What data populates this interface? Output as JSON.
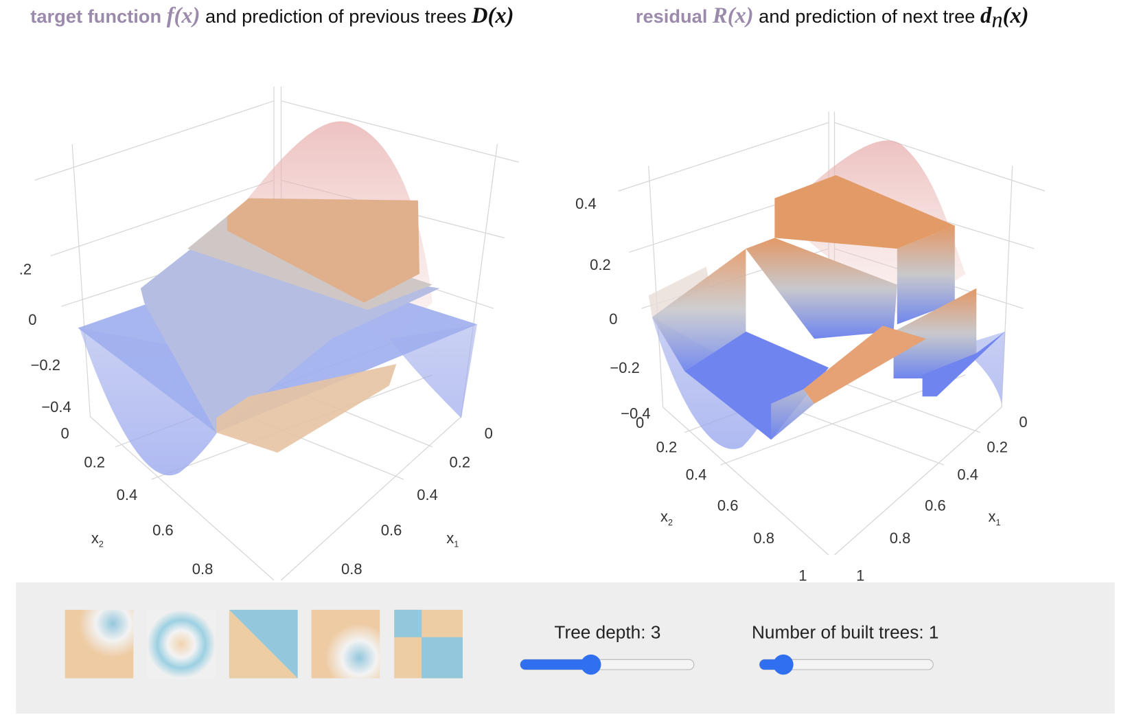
{
  "left_panel": {
    "title": {
      "highlight": "target function",
      "math1": "f(x)",
      "text": " and prediction of previous trees ",
      "math2": "D(x)"
    },
    "z_ticks": [
      ".2",
      "0",
      "−0.2",
      "−0.4"
    ],
    "x2_ticks": [
      "0",
      "0.2",
      "0.4",
      "0.6",
      "0.8"
    ],
    "x1_ticks": [
      "0",
      "0.2",
      "0.4",
      "0.6",
      "0.8"
    ],
    "x2_label": {
      "symbol": "x",
      "subscript": "2"
    },
    "x1_label": {
      "symbol": "x",
      "subscript": "1"
    }
  },
  "right_panel": {
    "title": {
      "highlight": "residual",
      "math1": "R(x)",
      "text": " and prediction of next tree ",
      "math2": "d",
      "math2_sub": "n",
      "math3": "(x)"
    },
    "z_ticks": [
      "0.4",
      "0.2",
      "0",
      "−0.2",
      "−0.4"
    ],
    "x2_ticks": [
      "0",
      "0.2",
      "0.4",
      "0.6",
      "0.8",
      "1"
    ],
    "x1_ticks": [
      "0",
      "0.2",
      "0.4",
      "0.6",
      "0.8",
      "1"
    ],
    "x2_label": {
      "symbol": "x",
      "subscript": "2"
    },
    "x1_label": {
      "symbol": "x",
      "subscript": "1"
    }
  },
  "controls": {
    "tree_depth": "Tree depth: 3",
    "num_trees": "Number of built trees: 1"
  }
}
